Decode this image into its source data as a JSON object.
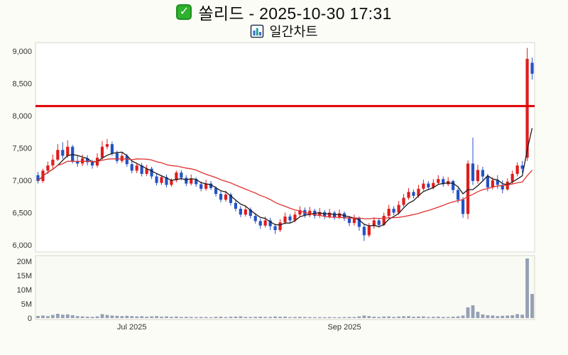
{
  "header": {
    "title": "쏠리드 - 2025-10-30 17:31",
    "subtitle": "일간차트",
    "check_glyph": "✓"
  },
  "chart_data": {
    "type": "candlestick",
    "title": "쏠리드 - 2025-10-30 17:31",
    "subtitle": "일간차트",
    "legend_position": "none",
    "grid": false,
    "price_axis": {
      "min": 6000,
      "max": 9000,
      "ticks": [
        {
          "value": 9000,
          "label": "9,000"
        },
        {
          "value": 8500,
          "label": "8,500"
        },
        {
          "value": 8000,
          "label": "8,000"
        },
        {
          "value": 7500,
          "label": "7,500"
        },
        {
          "value": 7000,
          "label": "7,000"
        },
        {
          "value": 6500,
          "label": "6,500"
        },
        {
          "value": 6000,
          "label": "6,000"
        }
      ]
    },
    "volume_axis": {
      "max": 20000000,
      "ticks": [
        {
          "value": 20000000,
          "label": "20M"
        },
        {
          "value": 15000000,
          "label": "15M"
        },
        {
          "value": 10000000,
          "label": "10M"
        },
        {
          "value": 5000000,
          "label": "5M"
        },
        {
          "value": 0,
          "label": "0"
        }
      ]
    },
    "x_axis_labels": [
      {
        "date": "2025-07-01",
        "label": "Jul 2025"
      },
      {
        "date": "2025-09-01",
        "label": "Sep 2025"
      }
    ],
    "reference_line": {
      "price": 8150,
      "color": "#e00000"
    },
    "moving_averages": [
      {
        "name": "MA5",
        "period": 5,
        "color": "#1a1a1a"
      },
      {
        "name": "MA20",
        "period": 20,
        "color": "#e03030"
      }
    ],
    "colors": {
      "up": "#df1d1d",
      "down": "#2453c4",
      "volume": "#94a0b4"
    },
    "candle_fields": [
      "date",
      "open",
      "high",
      "low",
      "close",
      "volume"
    ],
    "candles": [
      [
        "2025-06-04",
        7080,
        7130,
        6950,
        6990,
        750000
      ],
      [
        "2025-06-05",
        6990,
        7180,
        6960,
        7150,
        900000
      ],
      [
        "2025-06-06",
        7150,
        7290,
        7100,
        7230,
        700000
      ],
      [
        "2025-06-09",
        7230,
        7400,
        7180,
        7320,
        1100000
      ],
      [
        "2025-06-10",
        7320,
        7560,
        7300,
        7470,
        1500000
      ],
      [
        "2025-06-11",
        7470,
        7590,
        7330,
        7380,
        1200000
      ],
      [
        "2025-06-12",
        7380,
        7620,
        7350,
        7520,
        1300000
      ],
      [
        "2025-06-13",
        7520,
        7550,
        7260,
        7300,
        1000000
      ],
      [
        "2025-06-16",
        7300,
        7380,
        7210,
        7260,
        700000
      ],
      [
        "2025-06-17",
        7260,
        7400,
        7220,
        7340,
        600000
      ],
      [
        "2025-06-18",
        7340,
        7390,
        7230,
        7280,
        500000
      ],
      [
        "2025-06-19",
        7280,
        7320,
        7180,
        7230,
        450000
      ],
      [
        "2025-06-20",
        7230,
        7420,
        7200,
        7350,
        600000
      ],
      [
        "2025-06-23",
        7350,
        7610,
        7320,
        7520,
        1400000
      ],
      [
        "2025-06-24",
        7520,
        7640,
        7480,
        7560,
        1100000
      ],
      [
        "2025-06-25",
        7560,
        7600,
        7380,
        7420,
        900000
      ],
      [
        "2025-06-26",
        7420,
        7460,
        7260,
        7300,
        800000
      ],
      [
        "2025-06-27",
        7300,
        7440,
        7270,
        7380,
        700000
      ],
      [
        "2025-06-30",
        7380,
        7410,
        7210,
        7250,
        800000
      ],
      [
        "2025-07-01",
        7250,
        7300,
        7110,
        7150,
        700000
      ],
      [
        "2025-07-02",
        7150,
        7260,
        7110,
        7230,
        600000
      ],
      [
        "2025-07-03",
        7230,
        7270,
        7060,
        7100,
        650000
      ],
      [
        "2025-07-04",
        7100,
        7240,
        7070,
        7180,
        500000
      ],
      [
        "2025-07-07",
        7180,
        7210,
        7020,
        7060,
        600000
      ],
      [
        "2025-07-08",
        7060,
        7100,
        6920,
        6960,
        700000
      ],
      [
        "2025-07-09",
        6960,
        7080,
        6930,
        7050,
        500000
      ],
      [
        "2025-07-10",
        7050,
        7090,
        6890,
        6930,
        600000
      ],
      [
        "2025-07-11",
        6930,
        7030,
        6900,
        7000,
        450000
      ],
      [
        "2025-07-14",
        7000,
        7150,
        6970,
        7120,
        550000
      ],
      [
        "2025-07-15",
        7120,
        7160,
        7000,
        7040,
        400000
      ],
      [
        "2025-07-16",
        7040,
        7080,
        6910,
        6950,
        450000
      ],
      [
        "2025-07-17",
        6950,
        7090,
        6920,
        7020,
        400000
      ],
      [
        "2025-07-18",
        7020,
        7050,
        6900,
        6940,
        350000
      ],
      [
        "2025-07-21",
        6940,
        6980,
        6830,
        6870,
        400000
      ],
      [
        "2025-07-22",
        6870,
        7010,
        6840,
        6950,
        380000
      ],
      [
        "2025-07-23",
        6950,
        6990,
        6850,
        6880,
        300000
      ],
      [
        "2025-07-24",
        6880,
        6910,
        6750,
        6790,
        450000
      ],
      [
        "2025-07-25",
        6790,
        6830,
        6660,
        6700,
        500000
      ],
      [
        "2025-07-28",
        6700,
        6840,
        6670,
        6780,
        350000
      ],
      [
        "2025-07-29",
        6780,
        6810,
        6610,
        6650,
        480000
      ],
      [
        "2025-07-30",
        6650,
        6690,
        6520,
        6560,
        520000
      ],
      [
        "2025-07-31",
        6560,
        6600,
        6430,
        6470,
        600000
      ],
      [
        "2025-08-01",
        6470,
        6610,
        6440,
        6550,
        400000
      ],
      [
        "2025-08-04",
        6550,
        6580,
        6410,
        6450,
        380000
      ],
      [
        "2025-08-05",
        6450,
        6490,
        6330,
        6370,
        450000
      ],
      [
        "2025-08-06",
        6370,
        6410,
        6250,
        6300,
        500000
      ],
      [
        "2025-08-07",
        6300,
        6440,
        6270,
        6380,
        400000
      ],
      [
        "2025-08-08",
        6380,
        6420,
        6230,
        6290,
        420000
      ],
      [
        "2025-08-11",
        6290,
        6330,
        6170,
        6230,
        550000
      ],
      [
        "2025-08-12",
        6230,
        6400,
        6200,
        6350,
        480000
      ],
      [
        "2025-08-13",
        6350,
        6500,
        6320,
        6440,
        520000
      ],
      [
        "2025-08-14",
        6440,
        6480,
        6340,
        6380,
        350000
      ],
      [
        "2025-08-18",
        6380,
        6520,
        6350,
        6470,
        400000
      ],
      [
        "2025-08-19",
        6470,
        6600,
        6440,
        6540,
        450000
      ],
      [
        "2025-08-20",
        6540,
        6580,
        6420,
        6460,
        380000
      ],
      [
        "2025-08-21",
        6460,
        6590,
        6430,
        6530,
        360000
      ],
      [
        "2025-08-22",
        6530,
        6560,
        6410,
        6450,
        330000
      ],
      [
        "2025-08-25",
        6450,
        6570,
        6420,
        6510,
        340000
      ],
      [
        "2025-08-26",
        6510,
        6540,
        6400,
        6440,
        310000
      ],
      [
        "2025-08-27",
        6440,
        6560,
        6410,
        6500,
        360000
      ],
      [
        "2025-08-28",
        6500,
        6530,
        6390,
        6430,
        300000
      ],
      [
        "2025-08-29",
        6430,
        6550,
        6400,
        6490,
        320000
      ],
      [
        "2025-09-01",
        6490,
        6520,
        6370,
        6410,
        350000
      ],
      [
        "2025-09-02",
        6410,
        6450,
        6290,
        6340,
        420000
      ],
      [
        "2025-09-03",
        6340,
        6470,
        6300,
        6420,
        380000
      ],
      [
        "2025-09-04",
        6420,
        6440,
        6220,
        6280,
        600000
      ],
      [
        "2025-09-05",
        6280,
        6310,
        6060,
        6150,
        900000
      ],
      [
        "2025-09-08",
        6150,
        6340,
        6120,
        6290,
        700000
      ],
      [
        "2025-09-09",
        6290,
        6430,
        6250,
        6380,
        500000
      ],
      [
        "2025-09-10",
        6380,
        6420,
        6270,
        6310,
        400000
      ],
      [
        "2025-09-11",
        6310,
        6500,
        6290,
        6450,
        550000
      ],
      [
        "2025-09-12",
        6450,
        6620,
        6420,
        6560,
        600000
      ],
      [
        "2025-09-15",
        6560,
        6600,
        6460,
        6500,
        400000
      ],
      [
        "2025-09-16",
        6500,
        6680,
        6470,
        6620,
        550000
      ],
      [
        "2025-09-17",
        6620,
        6790,
        6590,
        6730,
        650000
      ],
      [
        "2025-09-18",
        6730,
        6880,
        6700,
        6820,
        700000
      ],
      [
        "2025-09-19",
        6820,
        6860,
        6720,
        6760,
        450000
      ],
      [
        "2025-09-22",
        6760,
        6930,
        6730,
        6870,
        550000
      ],
      [
        "2025-09-23",
        6870,
        7010,
        6840,
        6950,
        600000
      ],
      [
        "2025-09-24",
        6950,
        6990,
        6850,
        6890,
        400000
      ],
      [
        "2025-09-25",
        6890,
        7020,
        6860,
        6960,
        450000
      ],
      [
        "2025-09-26",
        6960,
        7080,
        6930,
        7020,
        500000
      ],
      [
        "2025-09-29",
        7020,
        7060,
        6900,
        6940,
        400000
      ],
      [
        "2025-09-30",
        6940,
        7050,
        6910,
        6990,
        380000
      ],
      [
        "2025-10-01",
        6990,
        7010,
        6800,
        6850,
        500000
      ],
      [
        "2025-10-02",
        6850,
        6880,
        6650,
        6700,
        600000
      ],
      [
        "2025-10-10",
        6700,
        6740,
        6420,
        6480,
        900000
      ],
      [
        "2025-10-13",
        6480,
        7310,
        6400,
        7260,
        3800000
      ],
      [
        "2025-10-14",
        7260,
        7660,
        6930,
        6990,
        4500000
      ],
      [
        "2025-10-15",
        6990,
        7240,
        6950,
        7160,
        2200000
      ],
      [
        "2025-10-16",
        7160,
        7210,
        7000,
        7060,
        1300000
      ],
      [
        "2025-10-17",
        7060,
        7100,
        6830,
        6890,
        1000000
      ],
      [
        "2025-10-20",
        6890,
        7050,
        6860,
        7000,
        900000
      ],
      [
        "2025-10-21",
        7000,
        7080,
        6870,
        6930,
        700000
      ],
      [
        "2025-10-22",
        6930,
        7000,
        6800,
        6860,
        800000
      ],
      [
        "2025-10-23",
        6860,
        7030,
        6840,
        6980,
        900000
      ],
      [
        "2025-10-24",
        6980,
        7150,
        6950,
        7100,
        1000000
      ],
      [
        "2025-10-27",
        7100,
        7280,
        7060,
        7230,
        1400000
      ],
      [
        "2025-10-28",
        7230,
        7300,
        7120,
        7180,
        1200000
      ],
      [
        "2025-10-29",
        7350,
        9050,
        7300,
        8880,
        21000000
      ],
      [
        "2025-10-30",
        8820,
        8900,
        8560,
        8650,
        8500000
      ]
    ]
  }
}
